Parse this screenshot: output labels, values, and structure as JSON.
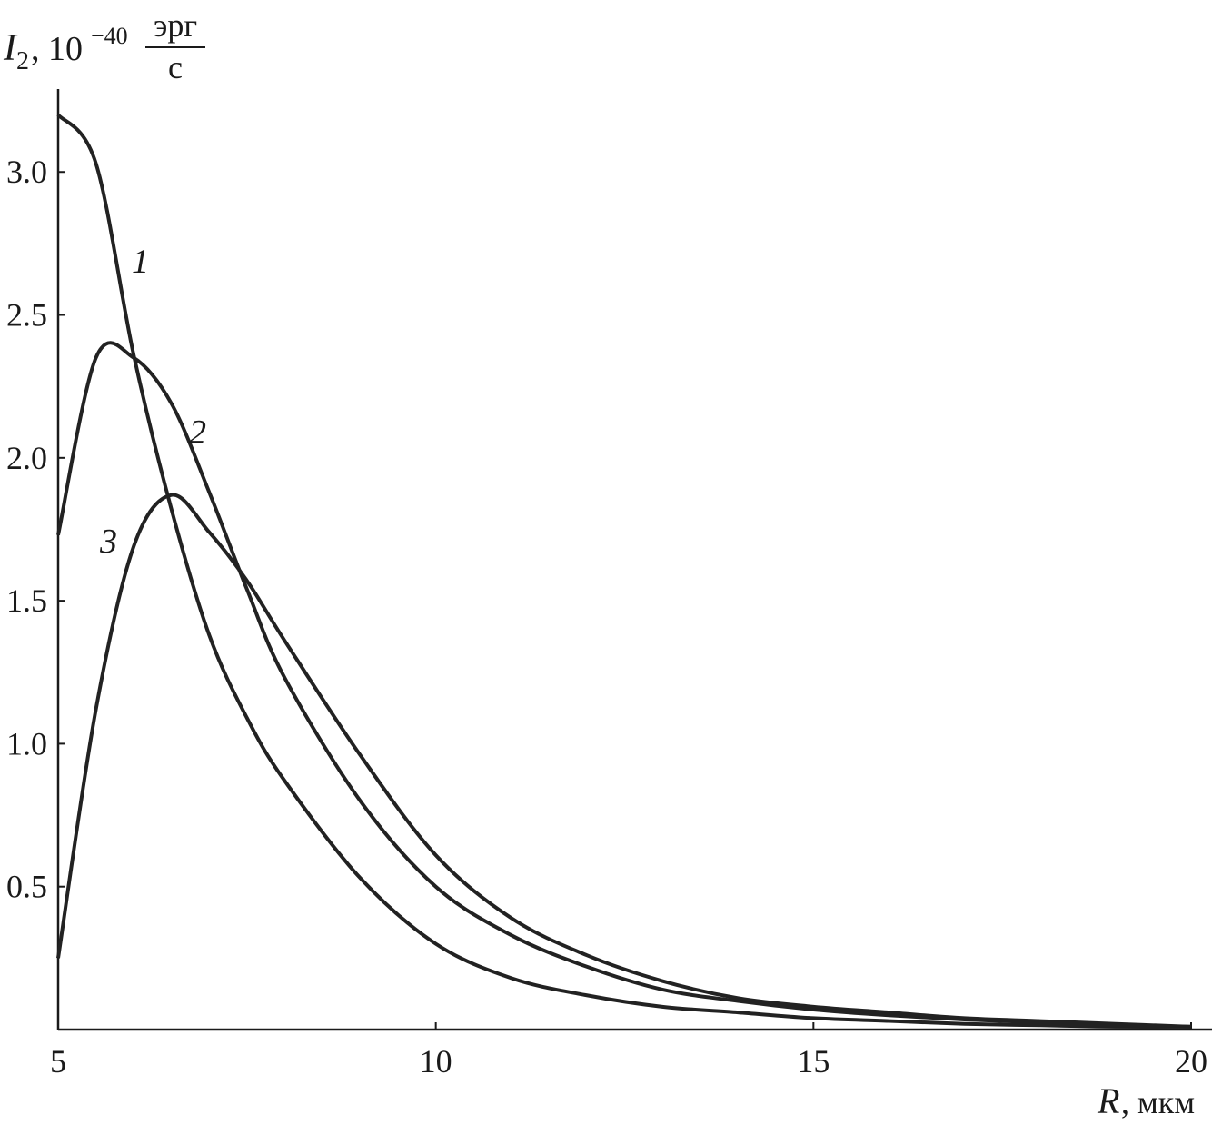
{
  "chart_data": {
    "type": "line",
    "y_label": {
      "symbol": "I",
      "subscript": "2",
      "factor": ", 10",
      "exponent": "−40",
      "unit_numerator": "эрг",
      "unit_denominator": "с"
    },
    "x_label": {
      "symbol": "R",
      "unit": ", мкм"
    },
    "x": [
      5,
      5.5,
      6,
      6.5,
      7,
      7.5,
      8,
      9,
      10,
      11,
      12,
      13,
      14,
      15,
      16,
      17,
      18,
      19,
      20
    ],
    "series": [
      {
        "name": "1",
        "color": "#222222",
        "values": [
          3.2,
          3.03,
          2.36,
          1.82,
          1.38,
          1.09,
          0.87,
          0.53,
          0.3,
          0.18,
          0.12,
          0.08,
          0.06,
          0.04,
          0.03,
          0.02,
          0.015,
          0.01,
          0.01
        ]
      },
      {
        "name": "2",
        "color": "#222222",
        "values": [
          1.73,
          2.35,
          2.35,
          2.19,
          1.88,
          1.54,
          1.23,
          0.8,
          0.5,
          0.33,
          0.22,
          0.14,
          0.1,
          0.07,
          0.05,
          0.035,
          0.025,
          0.015,
          0.01
        ]
      },
      {
        "name": "3",
        "color": "#222222",
        "values": [
          0.25,
          1.12,
          1.69,
          1.87,
          1.74,
          1.57,
          1.36,
          0.96,
          0.61,
          0.39,
          0.26,
          0.17,
          0.11,
          0.08,
          0.06,
          0.04,
          0.03,
          0.02,
          0.01
        ]
      }
    ],
    "xlim": [
      5,
      20
    ],
    "xticks": [
      5,
      10,
      15,
      20
    ],
    "ylim": [
      0,
      3.3
    ],
    "yticks": [
      0.5,
      {
        "value": 1,
        "label": "1.0"
      },
      1.5,
      {
        "value": 2,
        "label": "2.0"
      },
      2.5,
      {
        "value": 3,
        "label": "3.0"
      }
    ],
    "grid": false
  }
}
